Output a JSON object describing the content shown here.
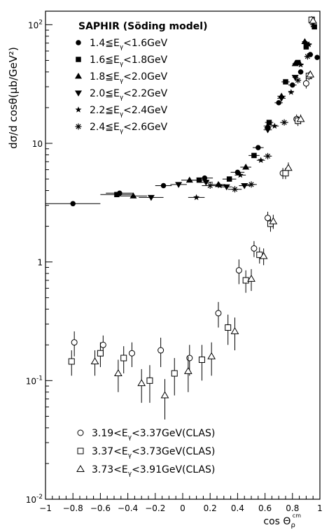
{
  "chart_data": {
    "type": "scatter",
    "xlabel": "cos Θ",
    "xlabel_sub": "ρ",
    "xlabel_sup": "cm",
    "ylabel": "dσ/d cosθ(μb/GeV²)",
    "xlim": [
      -1,
      1
    ],
    "ylim": [
      0.01,
      130
    ],
    "yscale": "log",
    "grid": false,
    "x_ticks": [
      -1,
      -0.8,
      -0.6,
      -0.4,
      -0.2,
      0,
      0.2,
      0.4,
      0.6,
      0.8,
      1
    ],
    "x_tick_labels": [
      "−1",
      "−0.8",
      "−0.6",
      "−0.4",
      "−0.2",
      "0",
      "0.2",
      "0.4",
      "0.6",
      "0.8",
      "1"
    ],
    "y_ticks": [
      0.01,
      0.1,
      1,
      10,
      100
    ],
    "y_tick_labels": [
      {
        "base": "10",
        "exp": "-2"
      },
      {
        "base": "10",
        "exp": "-1"
      },
      {
        "base": "1",
        "exp": ""
      },
      {
        "base": "10",
        "exp": ""
      },
      {
        "base": "10",
        "exp": "2"
      }
    ],
    "legend_top": {
      "title": "SAPHIR (Söding model)",
      "position": "top-left",
      "entries": [
        {
          "series": 0,
          "pre": "1.4≦E",
          "post": "<1.6GeV"
        },
        {
          "series": 1,
          "pre": "1.6≦E",
          "post": "<1.8GeV"
        },
        {
          "series": 2,
          "pre": "1.8≦E",
          "post": "<2.0GeV"
        },
        {
          "series": 3,
          "pre": "2.0≦E",
          "post": "<2.2GeV"
        },
        {
          "series": 4,
          "pre": "2.2≦E",
          "post": "<2.4GeV"
        },
        {
          "series": 5,
          "pre": "2.4≦E",
          "post": "<2.6GeV"
        }
      ]
    },
    "legend_bottom": {
      "position": "bottom-left",
      "entries": [
        {
          "series": 6,
          "pre": "3.19<E",
          "post": "<3.37GeV(CLAS)"
        },
        {
          "series": 7,
          "pre": "3.37<E",
          "post": "<3.73GeV(CLAS)"
        },
        {
          "series": 8,
          "pre": "3.73<E",
          "post": "<3.91GeV(CLAS)"
        }
      ]
    },
    "series": [
      {
        "marker": "circle-filled",
        "points": [
          {
            "x": -0.8,
            "y": 3.1,
            "xerr": 0.2,
            "yerr": 0
          },
          {
            "x": -0.46,
            "y": 3.8,
            "xerr": 0.1,
            "yerr": 0
          },
          {
            "x": -0.14,
            "y": 4.4,
            "xerr": 0.06,
            "yerr": 0
          },
          {
            "x": 0.16,
            "y": 5.1,
            "xerr": 0.06,
            "yerr": 0
          },
          {
            "x": 0.4,
            "y": 5.7,
            "xerr": 0.05,
            "yerr": 0
          },
          {
            "x": 0.55,
            "y": 9.2,
            "xerr": 0.04,
            "yerr": 0
          },
          {
            "x": 0.7,
            "y": 22,
            "xerr": 0.03,
            "yerr": 0
          },
          {
            "x": 0.8,
            "y": 31,
            "xerr": 0.03,
            "yerr": 0
          },
          {
            "x": 0.86,
            "y": 40,
            "xerr": 0.02,
            "yerr": 0
          },
          {
            "x": 0.93,
            "y": 56,
            "xerr": 0.02,
            "yerr": 0
          },
          {
            "x": 0.98,
            "y": 53,
            "xerr": 0.01,
            "yerr": 0
          }
        ]
      },
      {
        "marker": "square-filled",
        "points": [
          {
            "x": -0.48,
            "y": 3.7,
            "xerr": 0.12,
            "yerr": 0
          },
          {
            "x": 0.12,
            "y": 4.9,
            "xerr": 0.06,
            "yerr": 0
          },
          {
            "x": 0.34,
            "y": 5.0,
            "xerr": 0.05,
            "yerr": 0
          },
          {
            "x": 0.52,
            "y": 7.9,
            "xerr": 0.04,
            "yerr": 0
          },
          {
            "x": 0.63,
            "y": 15,
            "xerr": 0.03,
            "yerr": 0
          },
          {
            "x": 0.75,
            "y": 33,
            "xerr": 0.03,
            "yerr": 0
          },
          {
            "x": 0.84,
            "y": 48,
            "xerr": 0.02,
            "yerr": 0
          },
          {
            "x": 0.9,
            "y": 65,
            "xerr": 0.02,
            "yerr": 0
          },
          {
            "x": 0.96,
            "y": 96,
            "xerr": 0.01,
            "yerr": 0
          }
        ]
      },
      {
        "marker": "triangle-up-filled",
        "points": [
          {
            "x": -0.36,
            "y": 3.6,
            "xerr": 0.1,
            "yerr": 0
          },
          {
            "x": 0.05,
            "y": 4.9,
            "xerr": 0.06,
            "yerr": 0
          },
          {
            "x": 0.26,
            "y": 4.5,
            "xerr": 0.05,
            "yerr": 0
          },
          {
            "x": 0.46,
            "y": 6.3,
            "xerr": 0.04,
            "yerr": 0
          },
          {
            "x": 0.62,
            "y": 14,
            "xerr": 0.03,
            "yerr": 0
          },
          {
            "x": 0.72,
            "y": 25,
            "xerr": 0.03,
            "yerr": 0
          },
          {
            "x": 0.82,
            "y": 47,
            "xerr": 0.02,
            "yerr": 0
          },
          {
            "x": 0.89,
            "y": 72,
            "xerr": 0.02,
            "yerr": 0
          }
        ]
      },
      {
        "marker": "triangle-down-filled",
        "points": [
          {
            "x": -0.23,
            "y": 3.5,
            "xerr": 0.09,
            "yerr": 0
          },
          {
            "x": -0.03,
            "y": 4.5,
            "xerr": 0.06,
            "yerr": 0
          },
          {
            "x": 0.17,
            "y": 4.7,
            "xerr": 0.05,
            "yerr": 0
          },
          {
            "x": 0.32,
            "y": 4.3,
            "xerr": 0.04,
            "yerr": 0
          },
          {
            "x": 0.45,
            "y": 4.4,
            "xerr": 0.04,
            "yerr": 0
          },
          {
            "x": 0.62,
            "y": 13,
            "xerr": 0.03,
            "yerr": 0
          },
          {
            "x": 0.72,
            "y": 24,
            "xerr": 0.03,
            "yerr": 0
          },
          {
            "x": 0.82,
            "y": 36,
            "xerr": 0.02,
            "yerr": 0
          },
          {
            "x": 0.9,
            "y": 68,
            "xerr": 0.02,
            "yerr": 0
          }
        ]
      },
      {
        "marker": "star-filled",
        "points": [
          {
            "x": 0.1,
            "y": 3.5,
            "xerr": 0.06,
            "yerr": 0
          },
          {
            "x": 0.27,
            "y": 4.4,
            "xerr": 0.05,
            "yerr": 0
          },
          {
            "x": 0.42,
            "y": 5.4,
            "xerr": 0.04,
            "yerr": 0
          },
          {
            "x": 0.57,
            "y": 7.2,
            "xerr": 0.03,
            "yerr": 0
          },
          {
            "x": 0.67,
            "y": 14,
            "xerr": 0.03,
            "yerr": 0
          },
          {
            "x": 0.79,
            "y": 27,
            "xerr": 0.02,
            "yerr": 0
          },
          {
            "x": 0.86,
            "y": 46,
            "xerr": 0.02,
            "yerr": 0
          },
          {
            "x": 0.92,
            "y": 68,
            "xerr": 0.02,
            "yerr": 0
          }
        ]
      },
      {
        "marker": "asterisk",
        "points": [
          {
            "x": 0.2,
            "y": 4.4,
            "xerr": 0.06,
            "yerr": 0
          },
          {
            "x": 0.38,
            "y": 4.1,
            "xerr": 0.05,
            "yerr": 0
          },
          {
            "x": 0.5,
            "y": 4.5,
            "xerr": 0.04,
            "yerr": 0
          },
          {
            "x": 0.62,
            "y": 7.8,
            "xerr": 0.03,
            "yerr": 0
          },
          {
            "x": 0.74,
            "y": 15,
            "xerr": 0.03,
            "yerr": 0
          },
          {
            "x": 0.84,
            "y": 34,
            "xerr": 0.02,
            "yerr": 0
          },
          {
            "x": 0.91,
            "y": 54,
            "xerr": 0.02,
            "yerr": 0
          },
          {
            "x": 0.95,
            "y": 100,
            "xerr": 0.01,
            "yerr": 0
          }
        ]
      },
      {
        "marker": "circle-open",
        "points": [
          {
            "x": -0.79,
            "y": 0.21,
            "xerr": 0,
            "yerr": 0.05
          },
          {
            "x": -0.58,
            "y": 0.2,
            "xerr": 0,
            "yerr": 0.04
          },
          {
            "x": -0.37,
            "y": 0.17,
            "xerr": 0,
            "yerr": 0.04
          },
          {
            "x": -0.16,
            "y": 0.18,
            "xerr": 0,
            "yerr": 0.05
          },
          {
            "x": 0.05,
            "y": 0.155,
            "xerr": 0,
            "yerr": 0.045
          },
          {
            "x": 0.26,
            "y": 0.37,
            "xerr": 0,
            "yerr": 0.09
          },
          {
            "x": 0.41,
            "y": 0.85,
            "xerr": 0,
            "yerr": 0.2
          },
          {
            "x": 0.52,
            "y": 1.3,
            "xerr": 0,
            "yerr": 0.2
          },
          {
            "x": 0.62,
            "y": 2.35,
            "xerr": 0,
            "yerr": 0.3
          },
          {
            "x": 0.73,
            "y": 5.6,
            "xerr": 0,
            "yerr": 0.6
          },
          {
            "x": 0.83,
            "y": 16,
            "xerr": 0,
            "yerr": 1.5
          },
          {
            "x": 0.9,
            "y": 32,
            "xerr": 0,
            "yerr": 3
          }
        ]
      },
      {
        "marker": "square-open",
        "points": [
          {
            "x": -0.81,
            "y": 0.145,
            "xerr": 0,
            "yerr": 0.035
          },
          {
            "x": -0.6,
            "y": 0.17,
            "xerr": 0,
            "yerr": 0.04
          },
          {
            "x": -0.43,
            "y": 0.155,
            "xerr": 0,
            "yerr": 0.04
          },
          {
            "x": -0.24,
            "y": 0.1,
            "xerr": 0,
            "yerr": 0.035
          },
          {
            "x": -0.06,
            "y": 0.115,
            "xerr": 0,
            "yerr": 0.04
          },
          {
            "x": 0.14,
            "y": 0.15,
            "xerr": 0,
            "yerr": 0.05
          },
          {
            "x": 0.33,
            "y": 0.28,
            "xerr": 0,
            "yerr": 0.08
          },
          {
            "x": 0.46,
            "y": 0.7,
            "xerr": 0,
            "yerr": 0.15
          },
          {
            "x": 0.56,
            "y": 1.15,
            "xerr": 0,
            "yerr": 0.18
          },
          {
            "x": 0.64,
            "y": 2.1,
            "xerr": 0,
            "yerr": 0.3
          },
          {
            "x": 0.75,
            "y": 5.6,
            "xerr": 0,
            "yerr": 0.6
          },
          {
            "x": 0.84,
            "y": 15.5,
            "xerr": 0,
            "yerr": 1.5
          },
          {
            "x": 0.92,
            "y": 37,
            "xerr": 0,
            "yerr": 3
          },
          {
            "x": 0.94,
            "y": 110,
            "xerr": 0,
            "yerr": 8
          }
        ]
      },
      {
        "marker": "triangle-up-open",
        "points": [
          {
            "x": -0.64,
            "y": 0.145,
            "xerr": 0,
            "yerr": 0.035
          },
          {
            "x": -0.47,
            "y": 0.115,
            "xerr": 0,
            "yerr": 0.035
          },
          {
            "x": -0.3,
            "y": 0.095,
            "xerr": 0,
            "yerr": 0.03
          },
          {
            "x": -0.13,
            "y": 0.075,
            "xerr": 0,
            "yerr": 0.028
          },
          {
            "x": 0.04,
            "y": 0.12,
            "xerr": 0,
            "yerr": 0.04
          },
          {
            "x": 0.21,
            "y": 0.16,
            "xerr": 0,
            "yerr": 0.05
          },
          {
            "x": 0.38,
            "y": 0.26,
            "xerr": 0,
            "yerr": 0.08
          },
          {
            "x": 0.5,
            "y": 0.72,
            "xerr": 0,
            "yerr": 0.15
          },
          {
            "x": 0.59,
            "y": 1.12,
            "xerr": 0,
            "yerr": 0.18
          },
          {
            "x": 0.66,
            "y": 2.2,
            "xerr": 0,
            "yerr": 0.3
          },
          {
            "x": 0.77,
            "y": 6.2,
            "xerr": 0,
            "yerr": 0.7
          },
          {
            "x": 0.86,
            "y": 16,
            "xerr": 0,
            "yerr": 1.5
          },
          {
            "x": 0.93,
            "y": 38,
            "xerr": 0,
            "yerr": 3
          },
          {
            "x": 0.95,
            "y": 108,
            "xerr": 0,
            "yerr": 8
          }
        ]
      }
    ]
  }
}
